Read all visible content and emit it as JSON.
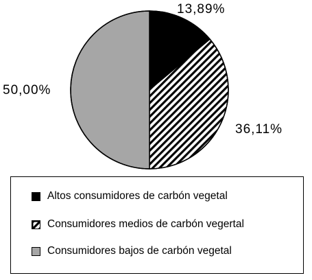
{
  "chart_data": {
    "type": "pie",
    "categories": [
      "Altos consumidores de carbón vegetal",
      "Consumidores medios de carbón vegertal",
      "Consumidores bajos de carbón vegetal"
    ],
    "values": [
      13.89,
      36.11,
      50.0
    ],
    "value_labels": [
      "13,89%",
      "36,11%",
      "50,00%"
    ],
    "fills": [
      "solid-black",
      "diagonal-hatch",
      "solid-gray"
    ],
    "colors": [
      "#000000",
      "#000000",
      "#a6a6a6"
    ],
    "start": "12 o'clock",
    "direction": "clockwise",
    "legend_position": "bottom"
  },
  "legend": {
    "items": [
      {
        "label": "Altos consumidores de carbón vegetal"
      },
      {
        "label": "Consumidores medios de carbón vegertal"
      },
      {
        "label": "Consumidores bajos de carbón vegetal"
      }
    ]
  }
}
